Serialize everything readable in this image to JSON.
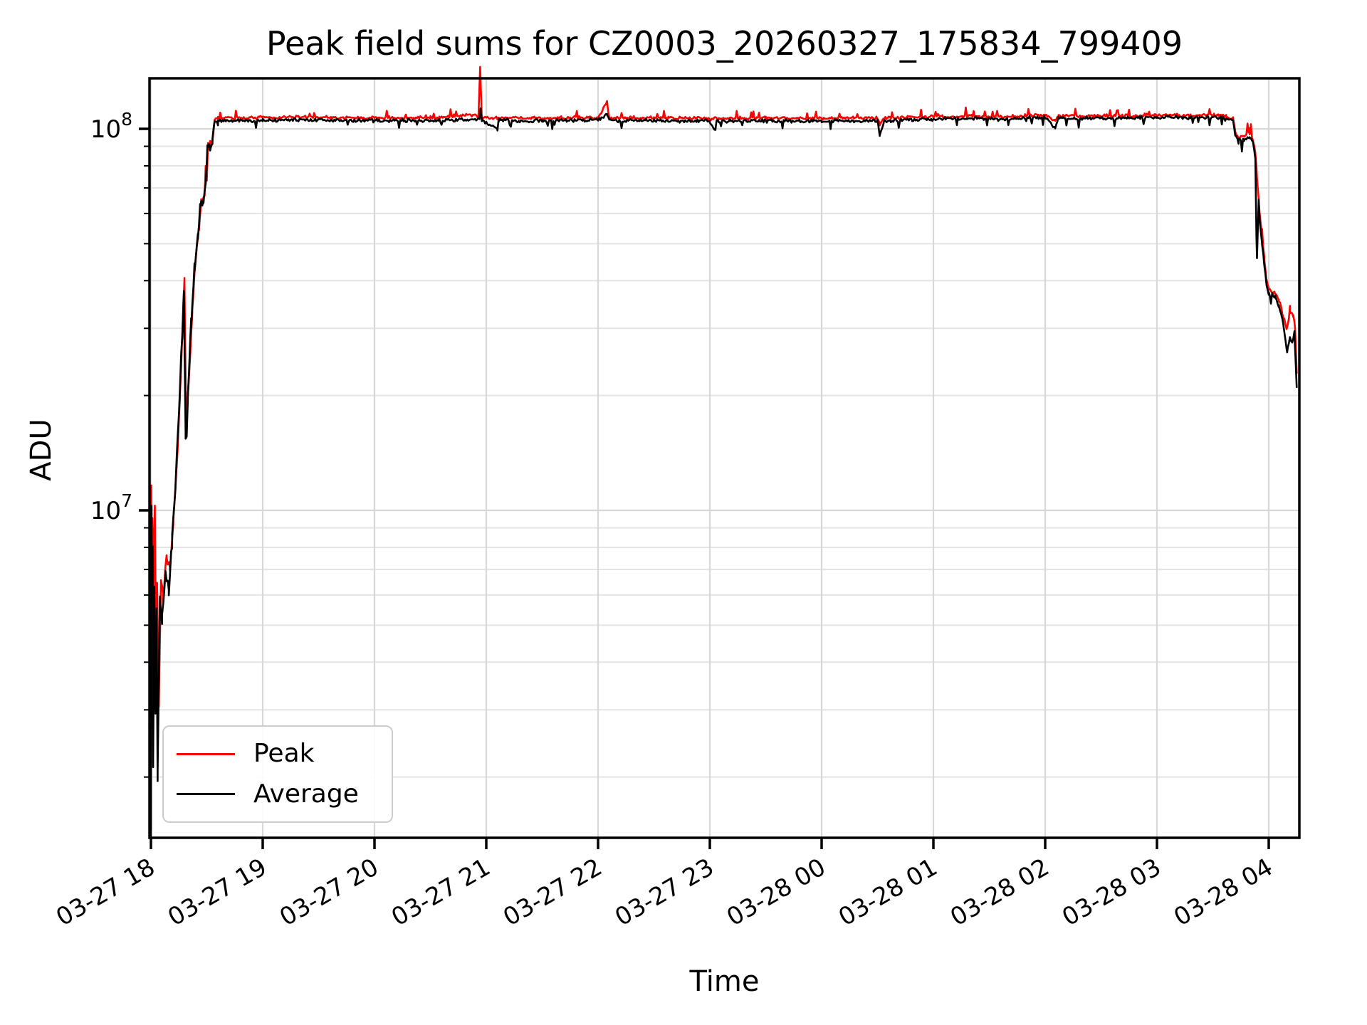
{
  "figure": {
    "background": "#ffffff",
    "spine_color": "#000000",
    "grid_major_color": "#d8d8d8",
    "grid_minor_color": "#e4e4e4"
  },
  "chart_data": {
    "type": "line",
    "title": "Peak field sums for CZ0003_20260327_175834_799409",
    "xlabel": "Time",
    "ylabel": "ADU",
    "yscale": "log",
    "ylim": [
      1390000,
      135700000
    ],
    "x_unit": "hours since 03-27 00:00 (values > 24 fall on 03-28)",
    "x_range_hours": [
      17.987,
      28.273
    ],
    "x_ticks_hours": [
      18,
      19,
      20,
      21,
      22,
      23,
      24,
      25,
      26,
      27,
      28
    ],
    "x_tick_labels": [
      "03-27 18",
      "03-27 19",
      "03-27 20",
      "03-27 21",
      "03-27 22",
      "03-27 23",
      "03-28 00",
      "03-28 01",
      "03-28 02",
      "03-28 03",
      "03-28 04"
    ],
    "y_major_ticks": [
      {
        "value": 10000000,
        "base": "10",
        "exp": "7"
      },
      {
        "value": 100000000,
        "base": "10",
        "exp": "8"
      }
    ],
    "grid": {
      "vertical_major": true,
      "horizontal_major": true,
      "horizontal_minor": true
    },
    "legend": {
      "position": "lower left",
      "entries": [
        {
          "label": "Peak",
          "color": "#ff0000"
        },
        {
          "label": "Average",
          "color": "#000000"
        }
      ]
    },
    "series": [
      {
        "name": "Peak",
        "color": "#ff0000",
        "anchors": [
          [
            18.0,
            1500000
          ],
          [
            18.003,
            11500000
          ],
          [
            18.007,
            5000000
          ],
          [
            18.012,
            9500000
          ],
          [
            18.018,
            3500000
          ],
          [
            18.025,
            8000000
          ],
          [
            18.035,
            10500000
          ],
          [
            18.045,
            4000000
          ],
          [
            18.055,
            6500000
          ],
          [
            18.07,
            3000000
          ],
          [
            18.09,
            6500000
          ],
          [
            18.11,
            6000000
          ],
          [
            18.14,
            7500000
          ],
          [
            18.17,
            7000000
          ],
          [
            18.2,
            9500000
          ],
          [
            18.23,
            13000000
          ],
          [
            18.26,
            20000000
          ],
          [
            18.285,
            31000000
          ],
          [
            18.3,
            40000000
          ],
          [
            18.315,
            17000000
          ],
          [
            18.34,
            22000000
          ],
          [
            18.37,
            33000000
          ],
          [
            18.4,
            45000000
          ],
          [
            18.43,
            55000000
          ],
          [
            18.45,
            65000000
          ],
          [
            18.48,
            67000000
          ],
          [
            18.5,
            74000000
          ],
          [
            18.51,
            90000000
          ],
          [
            18.54,
            91000000
          ],
          [
            18.555,
            95000000
          ],
          [
            18.57,
            106000000
          ],
          [
            18.6,
            106800000
          ],
          [
            19.0,
            107000000
          ],
          [
            19.5,
            107200000
          ],
          [
            20.0,
            106800000
          ],
          [
            20.5,
            107000000
          ],
          [
            20.9,
            109000000
          ],
          [
            20.93,
            108000000
          ],
          [
            20.945,
            146000000
          ],
          [
            20.96,
            107000000
          ],
          [
            21.5,
            106800000
          ],
          [
            22.0,
            107000000
          ],
          [
            22.08,
            118000000
          ],
          [
            22.1,
            107000000
          ],
          [
            22.5,
            106800000
          ],
          [
            23.0,
            106500000
          ],
          [
            23.5,
            106800000
          ],
          [
            24.0,
            106500000
          ],
          [
            24.5,
            106800000
          ],
          [
            24.52,
            103000000
          ],
          [
            24.56,
            106800000
          ],
          [
            25.0,
            107500000
          ],
          [
            25.3,
            108000000
          ],
          [
            25.6,
            107500000
          ],
          [
            26.0,
            108500000
          ],
          [
            26.09,
            105000000
          ],
          [
            26.12,
            108200000
          ],
          [
            26.5,
            108000000
          ],
          [
            27.0,
            108500000
          ],
          [
            27.3,
            108700000
          ],
          [
            27.55,
            108500000
          ],
          [
            27.62,
            108000000
          ],
          [
            27.68,
            106000000
          ],
          [
            27.7,
            98000000
          ],
          [
            27.73,
            95000000
          ],
          [
            27.78,
            96000000
          ],
          [
            27.83,
            97000000
          ],
          [
            27.86,
            94000000
          ],
          [
            27.88,
            86000000
          ],
          [
            27.895,
            75000000
          ],
          [
            27.905,
            68000000
          ],
          [
            27.92,
            60000000
          ],
          [
            27.94,
            52000000
          ],
          [
            27.96,
            46000000
          ],
          [
            27.98,
            40000000
          ],
          [
            28.0,
            38000000
          ],
          [
            28.03,
            37500000
          ],
          [
            28.06,
            37000000
          ],
          [
            28.09,
            35500000
          ],
          [
            28.12,
            33000000
          ],
          [
            28.165,
            30000000
          ],
          [
            28.19,
            33000000
          ],
          [
            28.22,
            32500000
          ],
          [
            28.235,
            30000000
          ],
          [
            28.25,
            23000000
          ]
        ]
      },
      {
        "name": "Average",
        "color": "#000000",
        "anchors": [
          [
            18.0,
            1400000
          ],
          [
            18.003,
            4000000
          ],
          [
            18.006,
            10500000
          ],
          [
            18.01,
            3000000
          ],
          [
            18.015,
            8000000
          ],
          [
            18.02,
            2200000
          ],
          [
            18.03,
            6500000
          ],
          [
            18.04,
            3000000
          ],
          [
            18.05,
            5500000
          ],
          [
            18.06,
            2000000
          ],
          [
            18.08,
            5800000
          ],
          [
            18.1,
            5200000
          ],
          [
            18.13,
            6800000
          ],
          [
            18.16,
            6200000
          ],
          [
            18.19,
            8500000
          ],
          [
            18.22,
            11500000
          ],
          [
            18.25,
            18000000
          ],
          [
            18.28,
            29000000
          ],
          [
            18.295,
            38000000
          ],
          [
            18.31,
            15500000
          ],
          [
            18.33,
            20000000
          ],
          [
            18.36,
            31000000
          ],
          [
            18.39,
            43000000
          ],
          [
            18.42,
            52000000
          ],
          [
            18.44,
            63000000
          ],
          [
            18.47,
            65000000
          ],
          [
            18.49,
            72000000
          ],
          [
            18.505,
            88000000
          ],
          [
            18.53,
            89000000
          ],
          [
            18.55,
            93000000
          ],
          [
            18.565,
            104000000
          ],
          [
            18.6,
            105000000
          ],
          [
            19.0,
            105300000
          ],
          [
            19.5,
            105500000
          ],
          [
            20.0,
            105000000
          ],
          [
            20.5,
            105200000
          ],
          [
            20.94,
            106000000
          ],
          [
            20.95,
            112000000
          ],
          [
            20.96,
            105000000
          ],
          [
            21.1,
            100000000
          ],
          [
            21.11,
            105300000
          ],
          [
            21.5,
            105000000
          ],
          [
            22.0,
            105500000
          ],
          [
            22.08,
            109000000
          ],
          [
            22.1,
            105200000
          ],
          [
            22.5,
            105000000
          ],
          [
            23.0,
            104800000
          ],
          [
            23.05,
            99000000
          ],
          [
            23.06,
            104800000
          ],
          [
            23.5,
            105000000
          ],
          [
            24.0,
            104700000
          ],
          [
            24.5,
            105000000
          ],
          [
            24.52,
            96000000
          ],
          [
            24.56,
            105000000
          ],
          [
            25.0,
            106000000
          ],
          [
            25.3,
            106500000
          ],
          [
            25.6,
            106000000
          ],
          [
            26.0,
            107000000
          ],
          [
            26.09,
            100500000
          ],
          [
            26.12,
            106800000
          ],
          [
            26.5,
            106500000
          ],
          [
            27.0,
            107000000
          ],
          [
            27.3,
            107200000
          ],
          [
            27.55,
            107000000
          ],
          [
            27.62,
            106500000
          ],
          [
            27.68,
            105000000
          ],
          [
            27.7,
            96000000
          ],
          [
            27.73,
            93000000
          ],
          [
            27.78,
            94000000
          ],
          [
            27.83,
            95000000
          ],
          [
            27.86,
            92000000
          ],
          [
            27.88,
            83000000
          ],
          [
            27.895,
            46000000
          ],
          [
            27.91,
            65000000
          ],
          [
            27.92,
            58000000
          ],
          [
            27.94,
            50000000
          ],
          [
            27.96,
            44000000
          ],
          [
            27.98,
            39000000
          ],
          [
            28.0,
            37000000
          ],
          [
            28.03,
            36500000
          ],
          [
            28.06,
            36000000
          ],
          [
            28.09,
            34500000
          ],
          [
            28.12,
            32000000
          ],
          [
            28.165,
            26000000
          ],
          [
            28.19,
            28500000
          ],
          [
            28.21,
            27500000
          ],
          [
            28.23,
            29000000
          ],
          [
            28.245,
            23000000
          ],
          [
            28.25,
            21000000
          ]
        ]
      }
    ],
    "render_hints": {
      "sample_step_hours": 0.01,
      "noise": [
        {
          "series": "Peak",
          "amp": 0.012,
          "seed": 7,
          "spike_dir": 1
        },
        {
          "series": "Average",
          "amp": 0.013,
          "seed": 13,
          "spike_dir": -1
        }
      ],
      "rise_end_t": 18.56,
      "fall_start_t": 27.69,
      "rise_noise_mult": 3.0,
      "fall_noise_mult": 1.5
    }
  }
}
